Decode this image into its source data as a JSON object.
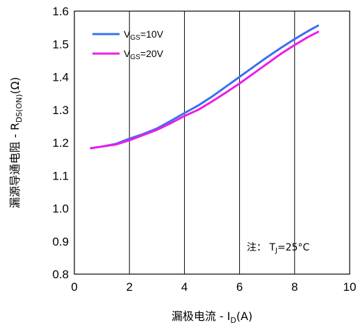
{
  "chart_data": {
    "type": "line",
    "xlabel": {
      "prefix": "漏极电流 - I",
      "sub": "D",
      "suffix": "(A)"
    },
    "ylabel": {
      "prefix": "漏源导通电阻 - R",
      "sub": "DS(ON)",
      "suffix": "(Ω)"
    },
    "xlim": [
      0,
      10
    ],
    "ylim": [
      0.8,
      1.6
    ],
    "x_ticks": [
      "0",
      "2",
      "4",
      "6",
      "8",
      "10"
    ],
    "y_ticks": [
      "0.8",
      "0.9",
      "1.0",
      "1.1",
      "1.2",
      "1.3",
      "1.4",
      "1.5",
      "1.6"
    ],
    "grid": "vertical-major",
    "legend_position": "top-left",
    "annotation": {
      "prefix": "注：  T",
      "sub": "J",
      "suffix": "=25°C"
    },
    "series": [
      {
        "name": {
          "prefix": "V",
          "sub": "GS",
          "suffix": "=10V"
        },
        "color": "#3a6ff2",
        "x": [
          0.6,
          1.0,
          1.5,
          2.0,
          2.5,
          3.0,
          3.5,
          4.0,
          4.5,
          5.0,
          5.5,
          6.0,
          6.5,
          7.0,
          7.5,
          8.0,
          8.5,
          8.85
        ],
        "y": [
          1.183,
          1.188,
          1.196,
          1.212,
          1.226,
          1.243,
          1.266,
          1.29,
          1.313,
          1.34,
          1.37,
          1.4,
          1.43,
          1.46,
          1.488,
          1.515,
          1.54,
          1.556
        ]
      },
      {
        "name": {
          "prefix": "V",
          "sub": "GS",
          "suffix": "=20V"
        },
        "color": "#ee1ce6",
        "x": [
          0.6,
          1.0,
          1.5,
          2.0,
          2.5,
          3.0,
          3.5,
          4.0,
          4.5,
          5.0,
          5.5,
          6.0,
          6.5,
          7.0,
          7.5,
          8.0,
          8.5,
          8.85
        ],
        "y": [
          1.183,
          1.188,
          1.194,
          1.207,
          1.223,
          1.239,
          1.259,
          1.281,
          1.3,
          1.325,
          1.352,
          1.38,
          1.41,
          1.44,
          1.47,
          1.497,
          1.522,
          1.537
        ]
      }
    ]
  }
}
